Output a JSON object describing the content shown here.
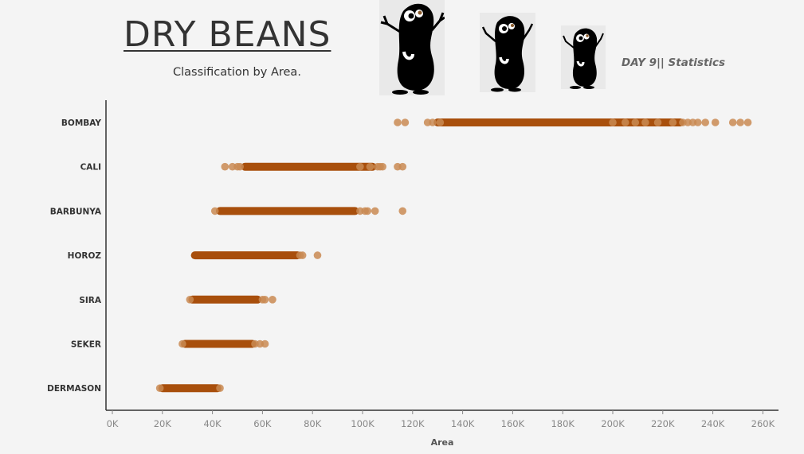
{
  "header": {
    "title": "DRY BEANS",
    "subtitle": "Classification by Area.",
    "day_label": "DAY 9|| Statistics"
  },
  "icons": [
    "bean-mascot-icon",
    "bean-mascot-icon",
    "bean-mascot-icon"
  ],
  "colors": {
    "background": "#f4f4f4",
    "dot": "#a84f0c",
    "outlier_dot": "#c98a52",
    "axis": "#333333"
  },
  "chart_data": {
    "type": "scatter",
    "title": "",
    "xlabel": "Area",
    "ylabel": "",
    "xlim": [
      0,
      260000
    ],
    "x_ticks": [
      "0K",
      "20K",
      "40K",
      "60K",
      "80K",
      "100K",
      "120K",
      "140K",
      "160K",
      "180K",
      "200K",
      "220K",
      "240K",
      "260K"
    ],
    "x_tick_values": [
      0,
      20000,
      40000,
      60000,
      80000,
      100000,
      120000,
      140000,
      160000,
      180000,
      200000,
      220000,
      240000,
      260000
    ],
    "categories": [
      "BOMBAY",
      "CALI",
      "BARBUNYA",
      "HOROZ",
      "SIRA",
      "SEKER",
      "DERMASON"
    ],
    "series": [
      {
        "category": "BOMBAY",
        "dense_range": [
          130000,
          227000
        ],
        "scattered_points": [
          114000,
          117000,
          126000,
          128000,
          131000,
          200000,
          205000,
          209000,
          213000,
          218000,
          224000,
          228000,
          230000,
          232000,
          234000,
          237000,
          241000,
          248000,
          251000,
          254000
        ]
      },
      {
        "category": "CALI",
        "dense_range": [
          53000,
          104000
        ],
        "scattered_points": [
          45000,
          48000,
          50000,
          51000,
          99000,
          103000,
          106000,
          107000,
          108000,
          114000,
          116000
        ]
      },
      {
        "category": "BARBUNYA",
        "dense_range": [
          43000,
          97000
        ],
        "scattered_points": [
          41000,
          99000,
          101000,
          102000,
          105000,
          116000
        ]
      },
      {
        "category": "HOROZ",
        "dense_range": [
          33000,
          74000
        ],
        "scattered_points": [
          75000,
          76000,
          82000
        ]
      },
      {
        "category": "SIRA",
        "dense_range": [
          32000,
          58000
        ],
        "scattered_points": [
          31000,
          60000,
          61000,
          64000
        ]
      },
      {
        "category": "SEKER",
        "dense_range": [
          29000,
          56000
        ],
        "scattered_points": [
          28000,
          57000,
          59000,
          61000
        ]
      },
      {
        "category": "DERMASON",
        "dense_range": [
          20000,
          42000
        ],
        "scattered_points": [
          19000,
          43000
        ]
      }
    ],
    "grid": false,
    "legend": "none"
  }
}
